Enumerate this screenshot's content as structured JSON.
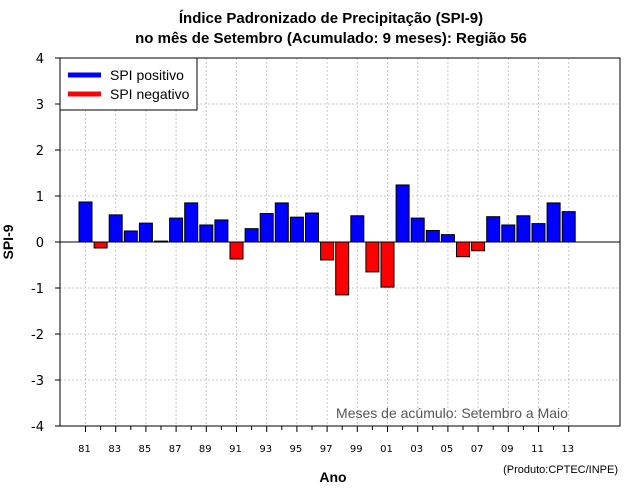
{
  "chart_data": {
    "type": "bar",
    "title_line1": "Índice Padronizado de Precipitação (SPI-9)",
    "title_line2": "no mês de Setembro (Acumulado: 9 meses): Região 56",
    "xlabel": "Ano",
    "ylabel": "SPI-9",
    "ylim": [
      -4,
      4
    ],
    "yticks": [
      -4,
      -3,
      -2,
      -1,
      0,
      1,
      2,
      3,
      4
    ],
    "grid": true,
    "legend": {
      "position": "top-left",
      "entries": [
        {
          "label": "SPI positivo",
          "color": "#0000ff"
        },
        {
          "label": "SPI negativo",
          "color": "#ff0000"
        }
      ]
    },
    "positive_color": "#0000ff",
    "negative_color": "#ff0000",
    "annotation": "Meses de acúmulo: Setembro a Maio",
    "credit": "(Produto:CPTEC/INPE)",
    "categories": [
      "81",
      "82",
      "83",
      "84",
      "85",
      "86",
      "87",
      "88",
      "89",
      "90",
      "91",
      "92",
      "93",
      "94",
      "95",
      "96",
      "97",
      "98",
      "99",
      "00",
      "01",
      "02",
      "03",
      "04",
      "05",
      "06",
      "07",
      "08",
      "09",
      "10",
      "11",
      "12",
      "13"
    ],
    "tick_labels": [
      "81",
      "83",
      "85",
      "87",
      "89",
      "91",
      "93",
      "95",
      "97",
      "99",
      "01",
      "03",
      "05",
      "07",
      "09",
      "11",
      "13"
    ],
    "values": [
      0.87,
      -0.13,
      0.59,
      0.24,
      0.41,
      0.02,
      0.52,
      0.85,
      0.37,
      0.48,
      -0.37,
      0.29,
      0.62,
      0.85,
      0.54,
      0.63,
      -0.39,
      -1.15,
      0.57,
      -0.65,
      -0.98,
      1.24,
      0.52,
      0.25,
      0.16,
      -0.32,
      -0.19,
      0.55,
      0.37,
      0.57,
      0.4,
      0.85,
      0.66
    ]
  }
}
